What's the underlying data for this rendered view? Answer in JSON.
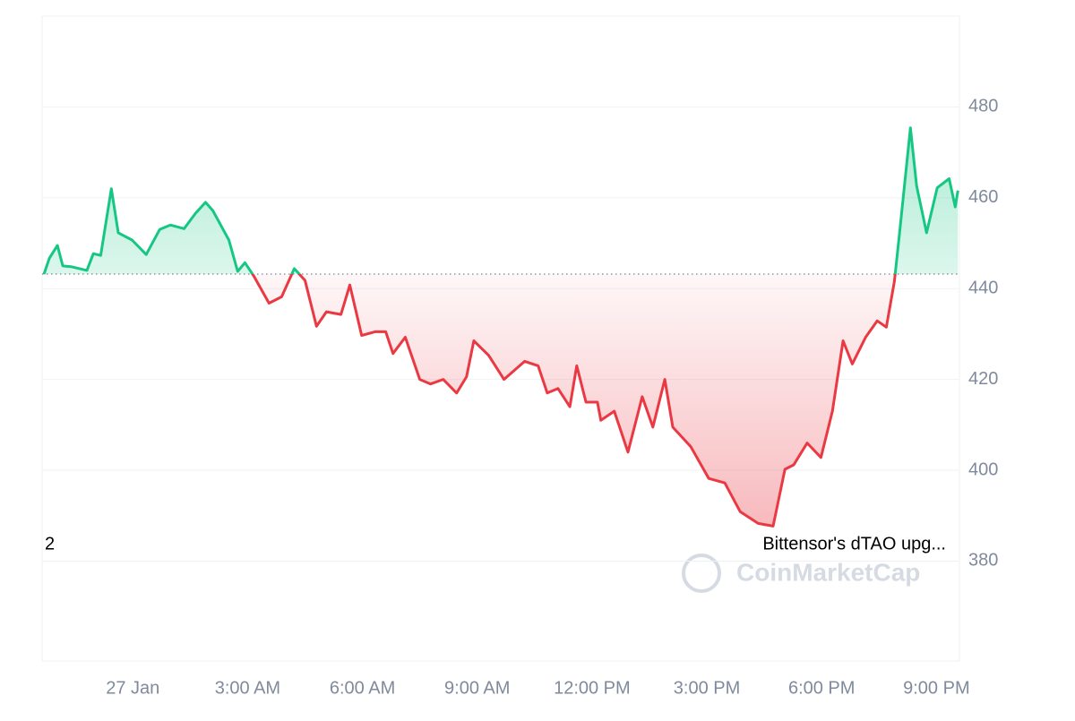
{
  "chart_data": {
    "type": "line",
    "x": [
      -2.32,
      -2.18,
      -1.97,
      -1.83,
      -1.59,
      -1.2,
      -1.03,
      -0.84,
      -0.56,
      -0.38,
      -0.02,
      0.35,
      0.7,
      0.98,
      1.34,
      1.64,
      1.9,
      2.09,
      2.51,
      2.74,
      2.93,
      3.16,
      3.56,
      3.89,
      4.22,
      4.5,
      4.8,
      5.06,
      5.44,
      5.67,
      5.98,
      6.33,
      6.61,
      6.8,
      7.12,
      7.5,
      7.78,
      8.11,
      8.46,
      8.72,
      8.91,
      9.3,
      9.7,
      10.24,
      10.59,
      10.83,
      11.11,
      11.42,
      11.6,
      11.84,
      12.14,
      12.23,
      12.58,
      12.94,
      13.31,
      13.59,
      13.9,
      14.11,
      14.58,
      15.05,
      15.47,
      15.87,
      16.34,
      16.73,
      17.04,
      17.27,
      17.62,
      17.98,
      18.28,
      18.56,
      18.8,
      19.15,
      19.45,
      19.69,
      19.9,
      20.04,
      20.32,
      20.48,
      20.74,
      21.02,
      21.33,
      21.49,
      21.56
    ],
    "series": [
      {
        "values": [
          443.2,
          446.7,
          449.5,
          445,
          444.8,
          444,
          447.7,
          447.3,
          462,
          452.3,
          450.7,
          447.5,
          453,
          454,
          453.2,
          456.6,
          459,
          457.2,
          450.7,
          443.8,
          445.7,
          442.8,
          436.8,
          438.2,
          444.4,
          441.8,
          431.7,
          434.9,
          434.3,
          440.8,
          429.7,
          430.5,
          430.5,
          425.7,
          429.3,
          420,
          419,
          420,
          417,
          420.6,
          428.5,
          425.3,
          420,
          424,
          423,
          417,
          418,
          414,
          423,
          415,
          415,
          411,
          413,
          404,
          416.2,
          409.5,
          420,
          409.5,
          405.2,
          398.2,
          397.2,
          390.9,
          388.3,
          387.7,
          400.2,
          401.2,
          406,
          402.8,
          413,
          428.5,
          423.4,
          429.3,
          432.9,
          431.5,
          441.6,
          452.7,
          475.4,
          462.6,
          452.3,
          462.2,
          464.2,
          458,
          461.6
        ]
      }
    ],
    "baseline": 443.2,
    "up_color": "#16c784",
    "down_color": "#ea3943",
    "xlim": [
      -2.37,
      21.6
    ],
    "xticks": [
      {
        "value": 0,
        "label": "27 Jan"
      },
      {
        "value": 3,
        "label": "3:00 AM"
      },
      {
        "value": 6,
        "label": "6:00 AM"
      },
      {
        "value": 9,
        "label": "9:00 AM"
      },
      {
        "value": 12,
        "label": "12:00 PM"
      },
      {
        "value": 15,
        "label": "3:00 PM"
      },
      {
        "value": 18,
        "label": "6:00 PM"
      },
      {
        "value": 21,
        "label": "9:00 PM"
      }
    ],
    "ylim": [
      358,
      500
    ],
    "yticks": [
      380,
      400,
      420,
      440,
      460,
      480
    ],
    "grid": true,
    "annotations": [
      "2",
      "Bittensor's dTAO upg..."
    ],
    "watermark": "CoinMarketCap"
  }
}
